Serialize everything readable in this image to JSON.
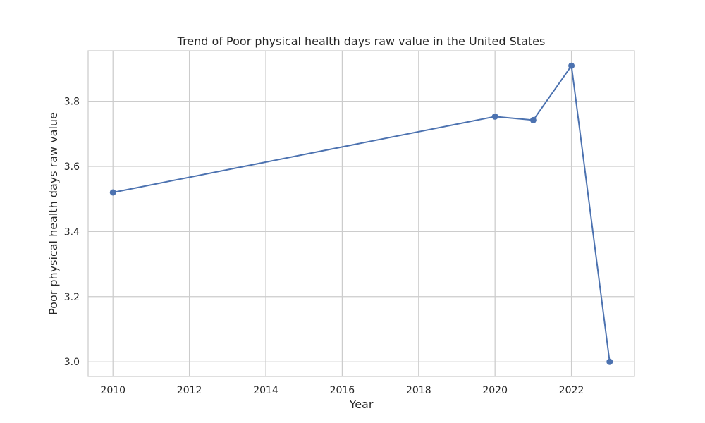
{
  "chart_data": {
    "type": "line",
    "title": "Trend of Poor physical health days raw value in the United States",
    "xlabel": "Year",
    "ylabel": "Poor physical health days raw value",
    "xlim": [
      2009.35,
      2023.65
    ],
    "ylim": [
      2.955,
      3.955
    ],
    "x_ticks": [
      2010,
      2012,
      2014,
      2016,
      2018,
      2020,
      2022
    ],
    "x_tick_labels": [
      "2010",
      "2012",
      "2014",
      "2016",
      "2018",
      "2020",
      "2022"
    ],
    "y_ticks": [
      3.0,
      3.2,
      3.4,
      3.6,
      3.8
    ],
    "y_tick_labels": [
      "3.0",
      "3.2",
      "3.4",
      "3.6",
      "3.8"
    ],
    "grid": true,
    "series": [
      {
        "x": [
          2010,
          2020,
          2021,
          2022,
          2023
        ],
        "y": [
          3.52,
          3.753,
          3.742,
          3.909,
          3.0
        ]
      }
    ],
    "colors": {
      "line": "#4c72b0",
      "grid": "#cccccc",
      "frame": "#cccccc",
      "text": "#262626"
    }
  }
}
